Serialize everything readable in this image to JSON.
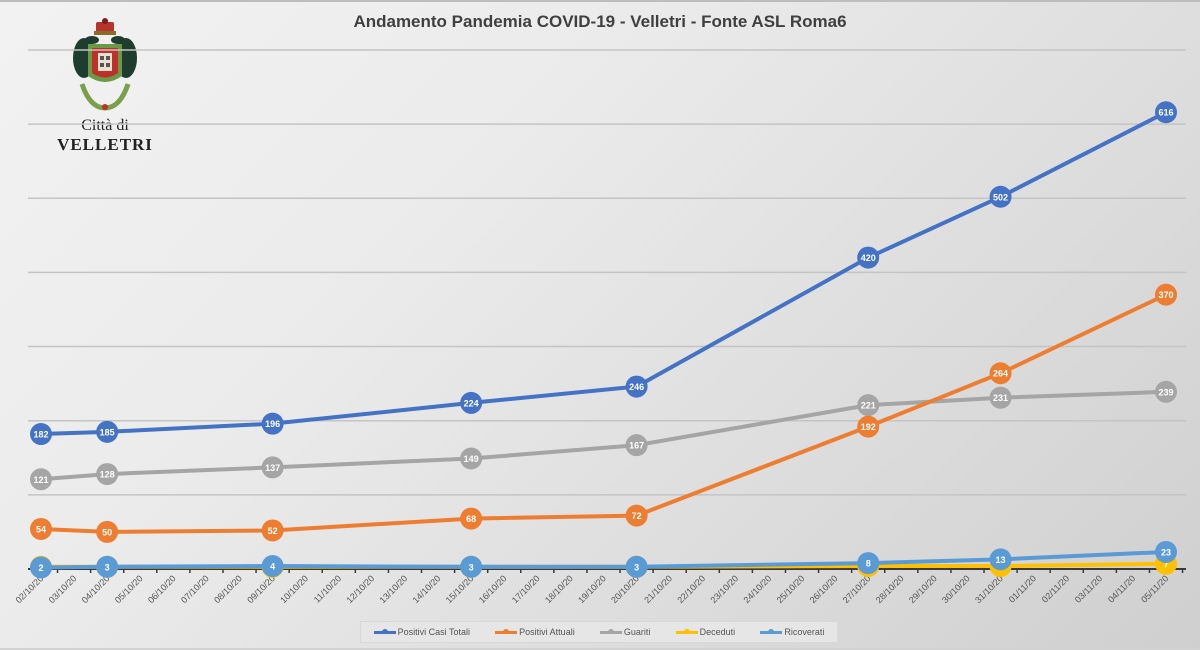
{
  "chart_data": {
    "type": "line",
    "title": "Andamento Pandemia COVID-19 - Velletri - Fonte ASL Roma6",
    "xlabel": "",
    "ylabel": "",
    "ylim": [
      0,
      700
    ],
    "grid": true,
    "y_gridlines": [
      100,
      200,
      300,
      400,
      500,
      600,
      700
    ],
    "legend_position": "bottom",
    "x_ticks": [
      "02/10/20",
      "03/10/20",
      "04/10/20",
      "05/10/20",
      "06/10/20",
      "07/10/20",
      "08/10/20",
      "09/10/20",
      "10/10/20",
      "11/10/20",
      "12/10/20",
      "13/10/20",
      "14/10/20",
      "15/10/20",
      "16/10/20",
      "17/10/20",
      "18/10/20",
      "19/10/20",
      "20/10/20",
      "21/10/20",
      "22/10/20",
      "23/10/20",
      "24/10/20",
      "25/10/20",
      "26/10/20",
      "27/10/20",
      "28/10/20",
      "29/10/20",
      "30/10/20",
      "31/10/20",
      "01/11/20",
      "02/11/20",
      "03/11/20",
      "04/11/20",
      "05/11/20"
    ],
    "x": [
      "02/10/20",
      "04/10/20",
      "09/10/20",
      "15/10/20",
      "20/10/20",
      "27/10/20",
      "31/10/20",
      "05/11/20"
    ],
    "series": [
      {
        "name": "Positivi Casi Totali",
        "color": "#4472C4",
        "values": [
          182,
          185,
          196,
          224,
          246,
          420,
          502,
          616
        ]
      },
      {
        "name": "Positivi Attuali",
        "color": "#ED7D31",
        "values": [
          54,
          50,
          52,
          68,
          72,
          192,
          264,
          370
        ]
      },
      {
        "name": "Guariti",
        "color": "#A5A5A5",
        "values": [
          121,
          128,
          137,
          149,
          167,
          221,
          231,
          239
        ]
      },
      {
        "name": "Deceduti",
        "color": "#FFC000",
        "values": [
          3,
          3,
          3,
          3,
          3,
          4,
          4,
          7
        ]
      },
      {
        "name": "Ricoverati",
        "color": "#5B9BD5",
        "values": [
          2,
          3,
          4,
          3,
          3,
          8,
          13,
          23
        ]
      }
    ]
  },
  "header": {
    "title": "Andamento Pandemia COVID-19 - Velletri - Fonte ASL Roma6",
    "logo_line1": "Città di",
    "logo_line2": "VELLETRI"
  },
  "legend": {
    "items": [
      {
        "label": "Positivi Casi Totali",
        "color": "#4472C4"
      },
      {
        "label": "Positivi Attuali",
        "color": "#ED7D31"
      },
      {
        "label": "Guariti",
        "color": "#A5A5A5"
      },
      {
        "label": "Deceduti",
        "color": "#FFC000"
      },
      {
        "label": "Ricoverati",
        "color": "#5B9BD5"
      }
    ]
  }
}
